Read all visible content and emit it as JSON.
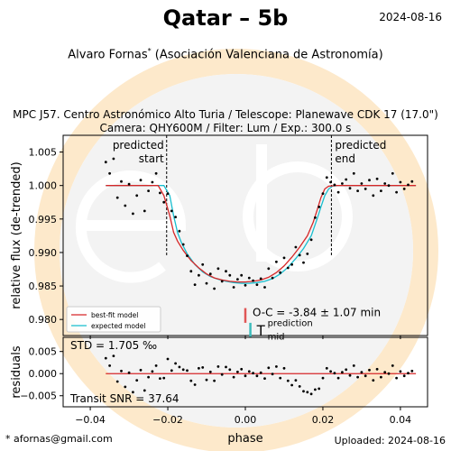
{
  "header": {
    "title": "Qatar – 5b",
    "date": "2024-08-16",
    "observer": "Alvaro Fornas",
    "observer_mark": "*",
    "affiliation": "(Asociación Valenciana de Astronomía)",
    "setup_line1": "MPC J57. Centro Astronómico Alto Turia / Telescope: Planewave CDK 17 (17.0\")",
    "setup_line2": "Camera: QHY600M / Filter: Lum / Exp.: 300.0 s"
  },
  "footer": {
    "email": "* afornas@gmail.com",
    "uploaded": "Uploaded: 2024-08-16"
  },
  "watermark": {
    "text": "exoclock",
    "ring_color": "#fde9cb"
  },
  "chart_data": [
    {
      "type": "scatter",
      "panel": "light-curve",
      "ylabel": "relative flux (de-trended)",
      "xlim": [
        -0.047,
        0.047
      ],
      "ylim": [
        0.9776,
        1.0075
      ],
      "yticks": [
        0.98,
        0.985,
        0.99,
        0.995,
        1.0,
        1.005
      ],
      "ytick_labels": [
        "0.980",
        "0.985",
        "0.990",
        "0.995",
        "1.000",
        "1.005"
      ],
      "annotations": {
        "predicted_start": {
          "label_line1": "predicted",
          "label_line2": "start",
          "x": -0.0203
        },
        "predicted_end": {
          "label_line1": "predicted",
          "label_line2": "end",
          "x": 0.0222
        },
        "oc_text": "O-C = -3.84 ± 1.07 min",
        "oc_marker": {
          "x": 0.0,
          "y_from": 0.9817,
          "y_to": 0.9795,
          "color": "#e05555"
        },
        "prediction_marker": {
          "x": 0.0013,
          "y_from": 0.9795,
          "y_to": 0.9773,
          "color": "#3dbdbd"
        },
        "tmid_base": "T",
        "tmid_sup": "prediction",
        "tmid_sub": "mid"
      },
      "legend": {
        "position": "lower-left",
        "entries": [
          {
            "label": "best-fit model",
            "color": "#d62728"
          },
          {
            "label": "expected model",
            "color": "#17becf"
          }
        ]
      },
      "models": {
        "best_fit": {
          "color": "#d62728",
          "x": [
            -0.036,
            -0.0225,
            -0.021,
            -0.0195,
            -0.0185,
            -0.0175,
            -0.016,
            -0.014,
            -0.012,
            -0.01,
            -0.008,
            -0.006,
            -0.004,
            -0.002,
            0.0,
            0.002,
            0.004,
            0.006,
            0.008,
            0.01,
            0.012,
            0.014,
            0.016,
            0.0175,
            0.0185,
            0.0195,
            0.0205,
            0.0215,
            0.0235,
            0.044
          ],
          "y": [
            1.0,
            1.0,
            0.9985,
            0.9955,
            0.993,
            0.9917,
            0.9903,
            0.9888,
            0.9877,
            0.9868,
            0.9862,
            0.9859,
            0.9857,
            0.9856,
            0.9856,
            0.9857,
            0.9859,
            0.9863,
            0.987,
            0.988,
            0.9893,
            0.9908,
            0.9925,
            0.9945,
            0.9963,
            0.9982,
            0.9995,
            0.9999,
            1.0,
            1.0
          ]
        },
        "expected": {
          "color": "#17becf",
          "x": [
            -0.036,
            -0.021,
            -0.0195,
            -0.0185,
            -0.0175,
            -0.0165,
            -0.015,
            -0.013,
            -0.011,
            -0.009,
            -0.007,
            -0.005,
            -0.003,
            -0.001,
            0.001,
            0.003,
            0.005,
            0.007,
            0.009,
            0.011,
            0.013,
            0.015,
            0.017,
            0.0185,
            0.0195,
            0.0205,
            0.0215,
            0.0225,
            0.024,
            0.044
          ],
          "y": [
            1.0,
            1.0,
            0.9985,
            0.9955,
            0.993,
            0.9915,
            0.9898,
            0.9882,
            0.9871,
            0.9864,
            0.986,
            0.9857,
            0.9855,
            0.9854,
            0.9854,
            0.9855,
            0.9857,
            0.9861,
            0.9868,
            0.9878,
            0.9891,
            0.9906,
            0.9925,
            0.995,
            0.9968,
            0.9985,
            0.9995,
            0.9999,
            1.0,
            1.0
          ]
        }
      },
      "points": {
        "x": [
          -0.036,
          -0.035,
          -0.034,
          -0.033,
          -0.032,
          -0.031,
          -0.03,
          -0.029,
          -0.028,
          -0.027,
          -0.026,
          -0.025,
          -0.024,
          -0.023,
          -0.022,
          -0.021,
          -0.02,
          -0.019,
          -0.018,
          -0.017,
          -0.016,
          -0.015,
          -0.014,
          -0.013,
          -0.012,
          -0.011,
          -0.01,
          -0.009,
          -0.008,
          -0.007,
          -0.006,
          -0.005,
          -0.004,
          -0.003,
          -0.002,
          -0.001,
          0.0,
          0.001,
          0.002,
          0.003,
          0.004,
          0.005,
          0.006,
          0.007,
          0.008,
          0.009,
          0.01,
          0.011,
          0.012,
          0.013,
          0.014,
          0.015,
          0.016,
          0.017,
          0.018,
          0.019,
          0.02,
          0.021,
          0.022,
          0.023,
          0.024,
          0.025,
          0.026,
          0.027,
          0.028,
          0.029,
          0.03,
          0.031,
          0.032,
          0.033,
          0.034,
          0.035,
          0.036,
          0.037,
          0.038,
          0.039,
          0.04,
          0.041,
          0.042,
          0.043
        ],
        "y": [
          1.0035,
          1.0018,
          1.004,
          0.9982,
          1.0006,
          0.997,
          1.0002,
          0.9958,
          0.9985,
          1.0008,
          0.9962,
          0.9992,
          1.0005,
          1.0018,
          0.9989,
          0.9975,
          0.9988,
          0.9962,
          0.9953,
          0.9932,
          0.9912,
          0.9895,
          0.9872,
          0.9852,
          0.9866,
          0.9882,
          0.9854,
          0.9868,
          0.9846,
          0.9876,
          0.9857,
          0.9872,
          0.9866,
          0.9848,
          0.986,
          0.9866,
          0.9851,
          0.9862,
          0.9858,
          0.9852,
          0.9861,
          0.9848,
          0.9876,
          0.9862,
          0.9886,
          0.987,
          0.9892,
          0.9877,
          0.9882,
          0.9908,
          0.9896,
          0.9885,
          0.9898,
          0.9919,
          0.9952,
          0.9968,
          0.9988,
          1.0012,
          1.0005,
          1.0001,
          0.999,
          1.0003,
          1.0009,
          0.9996,
          1.0018,
          0.9992,
          1.0003,
          0.9995,
          1.0008,
          0.9985,
          1.001,
          0.9992,
          1.0003,
          1.0,
          1.0018,
          0.999,
          1.0005,
          0.9995,
          1.0001,
          1.0006
        ]
      }
    },
    {
      "type": "scatter",
      "panel": "residuals",
      "ylabel": "residuals",
      "xlabel": "phase",
      "xlim": [
        -0.047,
        0.047
      ],
      "ylim": [
        -0.0075,
        0.0082
      ],
      "xticks": [
        -0.04,
        -0.02,
        0.0,
        0.02,
        0.04
      ],
      "xtick_labels": [
        "−0.04",
        "−0.02",
        "0.00",
        "0.02",
        "0.04"
      ],
      "yticks": [
        0.005,
        0.0,
        -0.005
      ],
      "ytick_labels": [
        "0.005",
        "0.000",
        "−0.005"
      ],
      "zero_line_color": "#d62728",
      "std_text": "STD = 1.705 ‰",
      "snr_text": "Transit SNR = 37.64",
      "points": {
        "x": [
          -0.036,
          -0.035,
          -0.034,
          -0.033,
          -0.032,
          -0.031,
          -0.03,
          -0.029,
          -0.028,
          -0.027,
          -0.026,
          -0.025,
          -0.024,
          -0.023,
          -0.022,
          -0.021,
          -0.02,
          -0.019,
          -0.018,
          -0.017,
          -0.016,
          -0.015,
          -0.014,
          -0.013,
          -0.012,
          -0.011,
          -0.01,
          -0.009,
          -0.008,
          -0.007,
          -0.006,
          -0.005,
          -0.004,
          -0.003,
          -0.002,
          -0.001,
          0.0,
          0.001,
          0.002,
          0.003,
          0.004,
          0.005,
          0.006,
          0.007,
          0.008,
          0.009,
          0.01,
          0.011,
          0.012,
          0.013,
          0.014,
          0.015,
          0.016,
          0.017,
          0.018,
          0.019,
          0.02,
          0.021,
          0.022,
          0.023,
          0.024,
          0.025,
          0.026,
          0.027,
          0.028,
          0.029,
          0.03,
          0.031,
          0.032,
          0.033,
          0.034,
          0.035,
          0.036,
          0.037,
          0.038,
          0.039,
          0.04,
          0.041,
          0.042,
          0.043
        ],
        "y": [
          0.0035,
          0.0018,
          0.004,
          -0.0018,
          0.0006,
          -0.003,
          0.0002,
          -0.0042,
          -0.0015,
          0.0008,
          -0.0038,
          -0.0008,
          0.0005,
          0.0018,
          -0.0011,
          -0.001,
          0.0033,
          0.0007,
          0.0023,
          0.0015,
          0.0009,
          0.0007,
          -0.0016,
          -0.0025,
          0.0012,
          0.0014,
          -0.0014,
          0.0004,
          -0.0016,
          0.0016,
          -0.0002,
          0.0015,
          0.0009,
          -0.0008,
          0.0004,
          0.001,
          -0.0005,
          0.0005,
          0.0001,
          -0.0005,
          0.0002,
          -0.0011,
          0.0013,
          -0.0001,
          0.0016,
          -0.001,
          0.0012,
          -0.0016,
          -0.0026,
          -0.0015,
          -0.0029,
          -0.004,
          -0.0042,
          -0.0046,
          -0.0036,
          -0.0034,
          -0.001,
          0.0012,
          0.0005,
          0.0001,
          -0.001,
          0.0003,
          0.0009,
          -0.0004,
          0.0018,
          -0.0008,
          0.0003,
          -0.0005,
          0.0008,
          -0.0015,
          0.001,
          -0.0008,
          0.0003,
          0.0,
          0.0018,
          -0.001,
          0.0005,
          -0.0005,
          0.0001,
          0.0006
        ]
      }
    }
  ]
}
